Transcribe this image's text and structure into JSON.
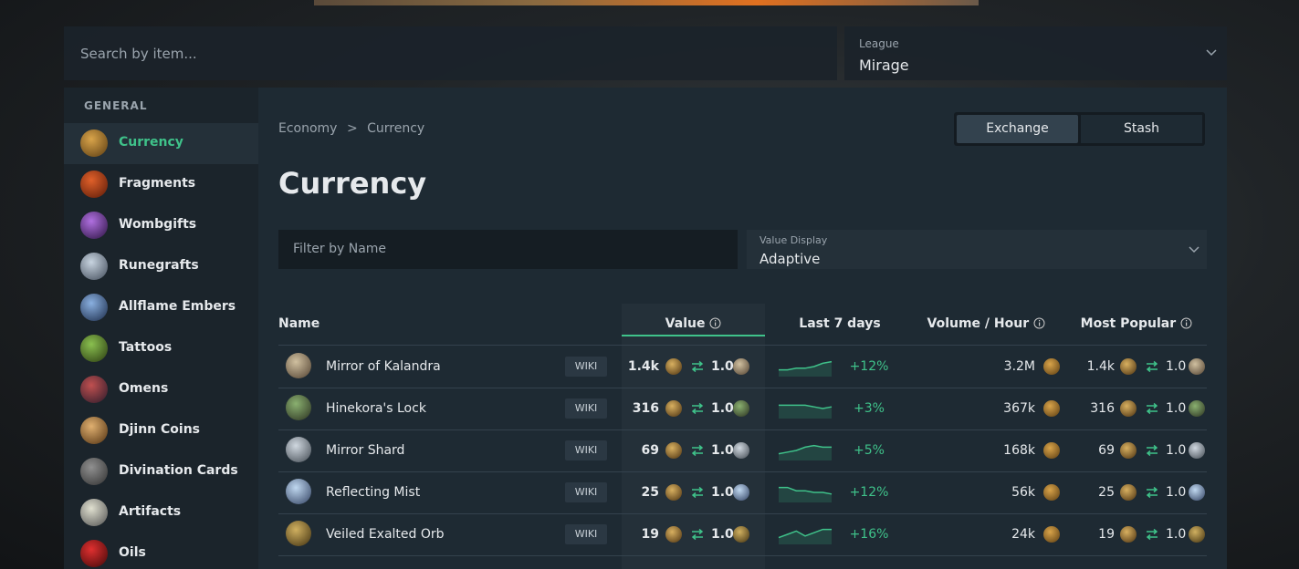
{
  "search": {
    "placeholder": "Search by item..."
  },
  "league": {
    "label": "League",
    "value": "Mirage"
  },
  "sidebar": {
    "heading": "GENERAL",
    "active": 0,
    "items": [
      "Currency",
      "Fragments",
      "Wombgifts",
      "Runegrafts",
      "Allflame Embers",
      "Tattoos",
      "Omens",
      "Djinn Coins",
      "Divination Cards",
      "Artifacts",
      "Oils"
    ]
  },
  "breadcrumb": [
    "Economy",
    ">",
    "Currency"
  ],
  "tabs": [
    "Exchange",
    "Stash"
  ],
  "title": "Currency",
  "filter": {
    "placeholder": "Filter by Name"
  },
  "value_display": {
    "label": "Value Display",
    "value": "Adaptive"
  },
  "table": {
    "columns": [
      "Name",
      "Value",
      "Last 7 days",
      "Volume / Hour",
      "Most Popular"
    ],
    "wiki_label": "WIKI",
    "rows": [
      {
        "name": "Mirror of Kalandra",
        "value": "1.4k",
        "ratio": "1.0",
        "change": "+12%",
        "volume": "3.2M",
        "popular_value": "1.4k",
        "popular_ratio": "1.0",
        "trend": [
          3,
          3,
          4,
          4,
          5,
          7,
          8
        ]
      },
      {
        "name": "Hinekora's Lock",
        "value": "316",
        "ratio": "1.0",
        "change": "+3%",
        "volume": "367k",
        "popular_value": "316",
        "popular_ratio": "1.0",
        "trend": [
          7,
          7,
          7,
          7,
          6,
          5,
          6
        ]
      },
      {
        "name": "Mirror Shard",
        "value": "69",
        "ratio": "1.0",
        "change": "+5%",
        "volume": "168k",
        "popular_value": "69",
        "popular_ratio": "1.0",
        "trend": [
          3,
          4,
          5,
          7,
          8,
          7,
          7
        ]
      },
      {
        "name": "Reflecting Mist",
        "value": "25",
        "ratio": "1.0",
        "change": "+12%",
        "volume": "56k",
        "popular_value": "25",
        "popular_ratio": "1.0",
        "trend": [
          8,
          8,
          6,
          6,
          5,
          5,
          4
        ]
      },
      {
        "name": "Veiled Exalted Orb",
        "value": "19",
        "ratio": "1.0",
        "change": "+16%",
        "volume": "24k",
        "popular_value": "19",
        "popular_ratio": "1.0",
        "trend": [
          3,
          5,
          7,
          4,
          6,
          8,
          8
        ]
      }
    ]
  }
}
